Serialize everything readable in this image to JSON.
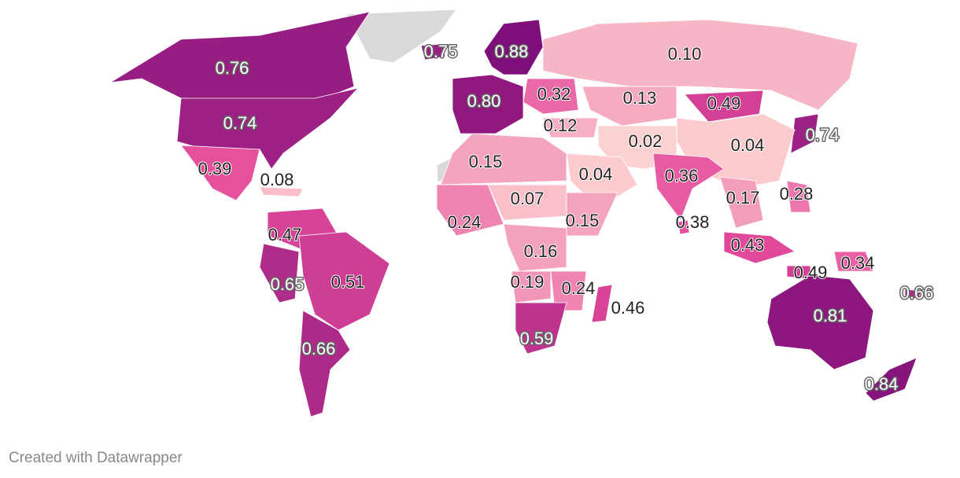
{
  "map": {
    "values": [
      0.76,
      0.74,
      0.39,
      0.08,
      0.47,
      0.65,
      0.51,
      0.66,
      0.75,
      0.88,
      0.8,
      0.32,
      0.12,
      0.1,
      0.13,
      0.49,
      0.74,
      0.02,
      0.04,
      0.15,
      0.04,
      0.36,
      0.07,
      0.17,
      0.28,
      0.24,
      0.15,
      0.38,
      0.16,
      0.43,
      0.34,
      0.49,
      0.19,
      0.24,
      0.46,
      0.66,
      0.59,
      0.81,
      0.84
    ],
    "value_labels": [
      "0.76",
      "0.74",
      "0.39",
      "0.08",
      "0.47",
      "0.65",
      "0.51",
      "0.66",
      "0.75",
      "0.88",
      "0.80",
      "0.32",
      "0.12",
      "0.10",
      "0.13",
      "0.49",
      "0.74",
      "0.02",
      "0.04",
      "0.15",
      "0.04",
      "0.36",
      "0.07",
      "0.17",
      "0.28",
      "0.24",
      "0.15",
      "0.38",
      "0.16",
      "0.43",
      "0.34",
      "0.49",
      "0.19",
      "0.24",
      "0.46",
      "0.66",
      "0.59",
      "0.81",
      "0.84"
    ],
    "footer": "Created with Datawrapper"
  }
}
